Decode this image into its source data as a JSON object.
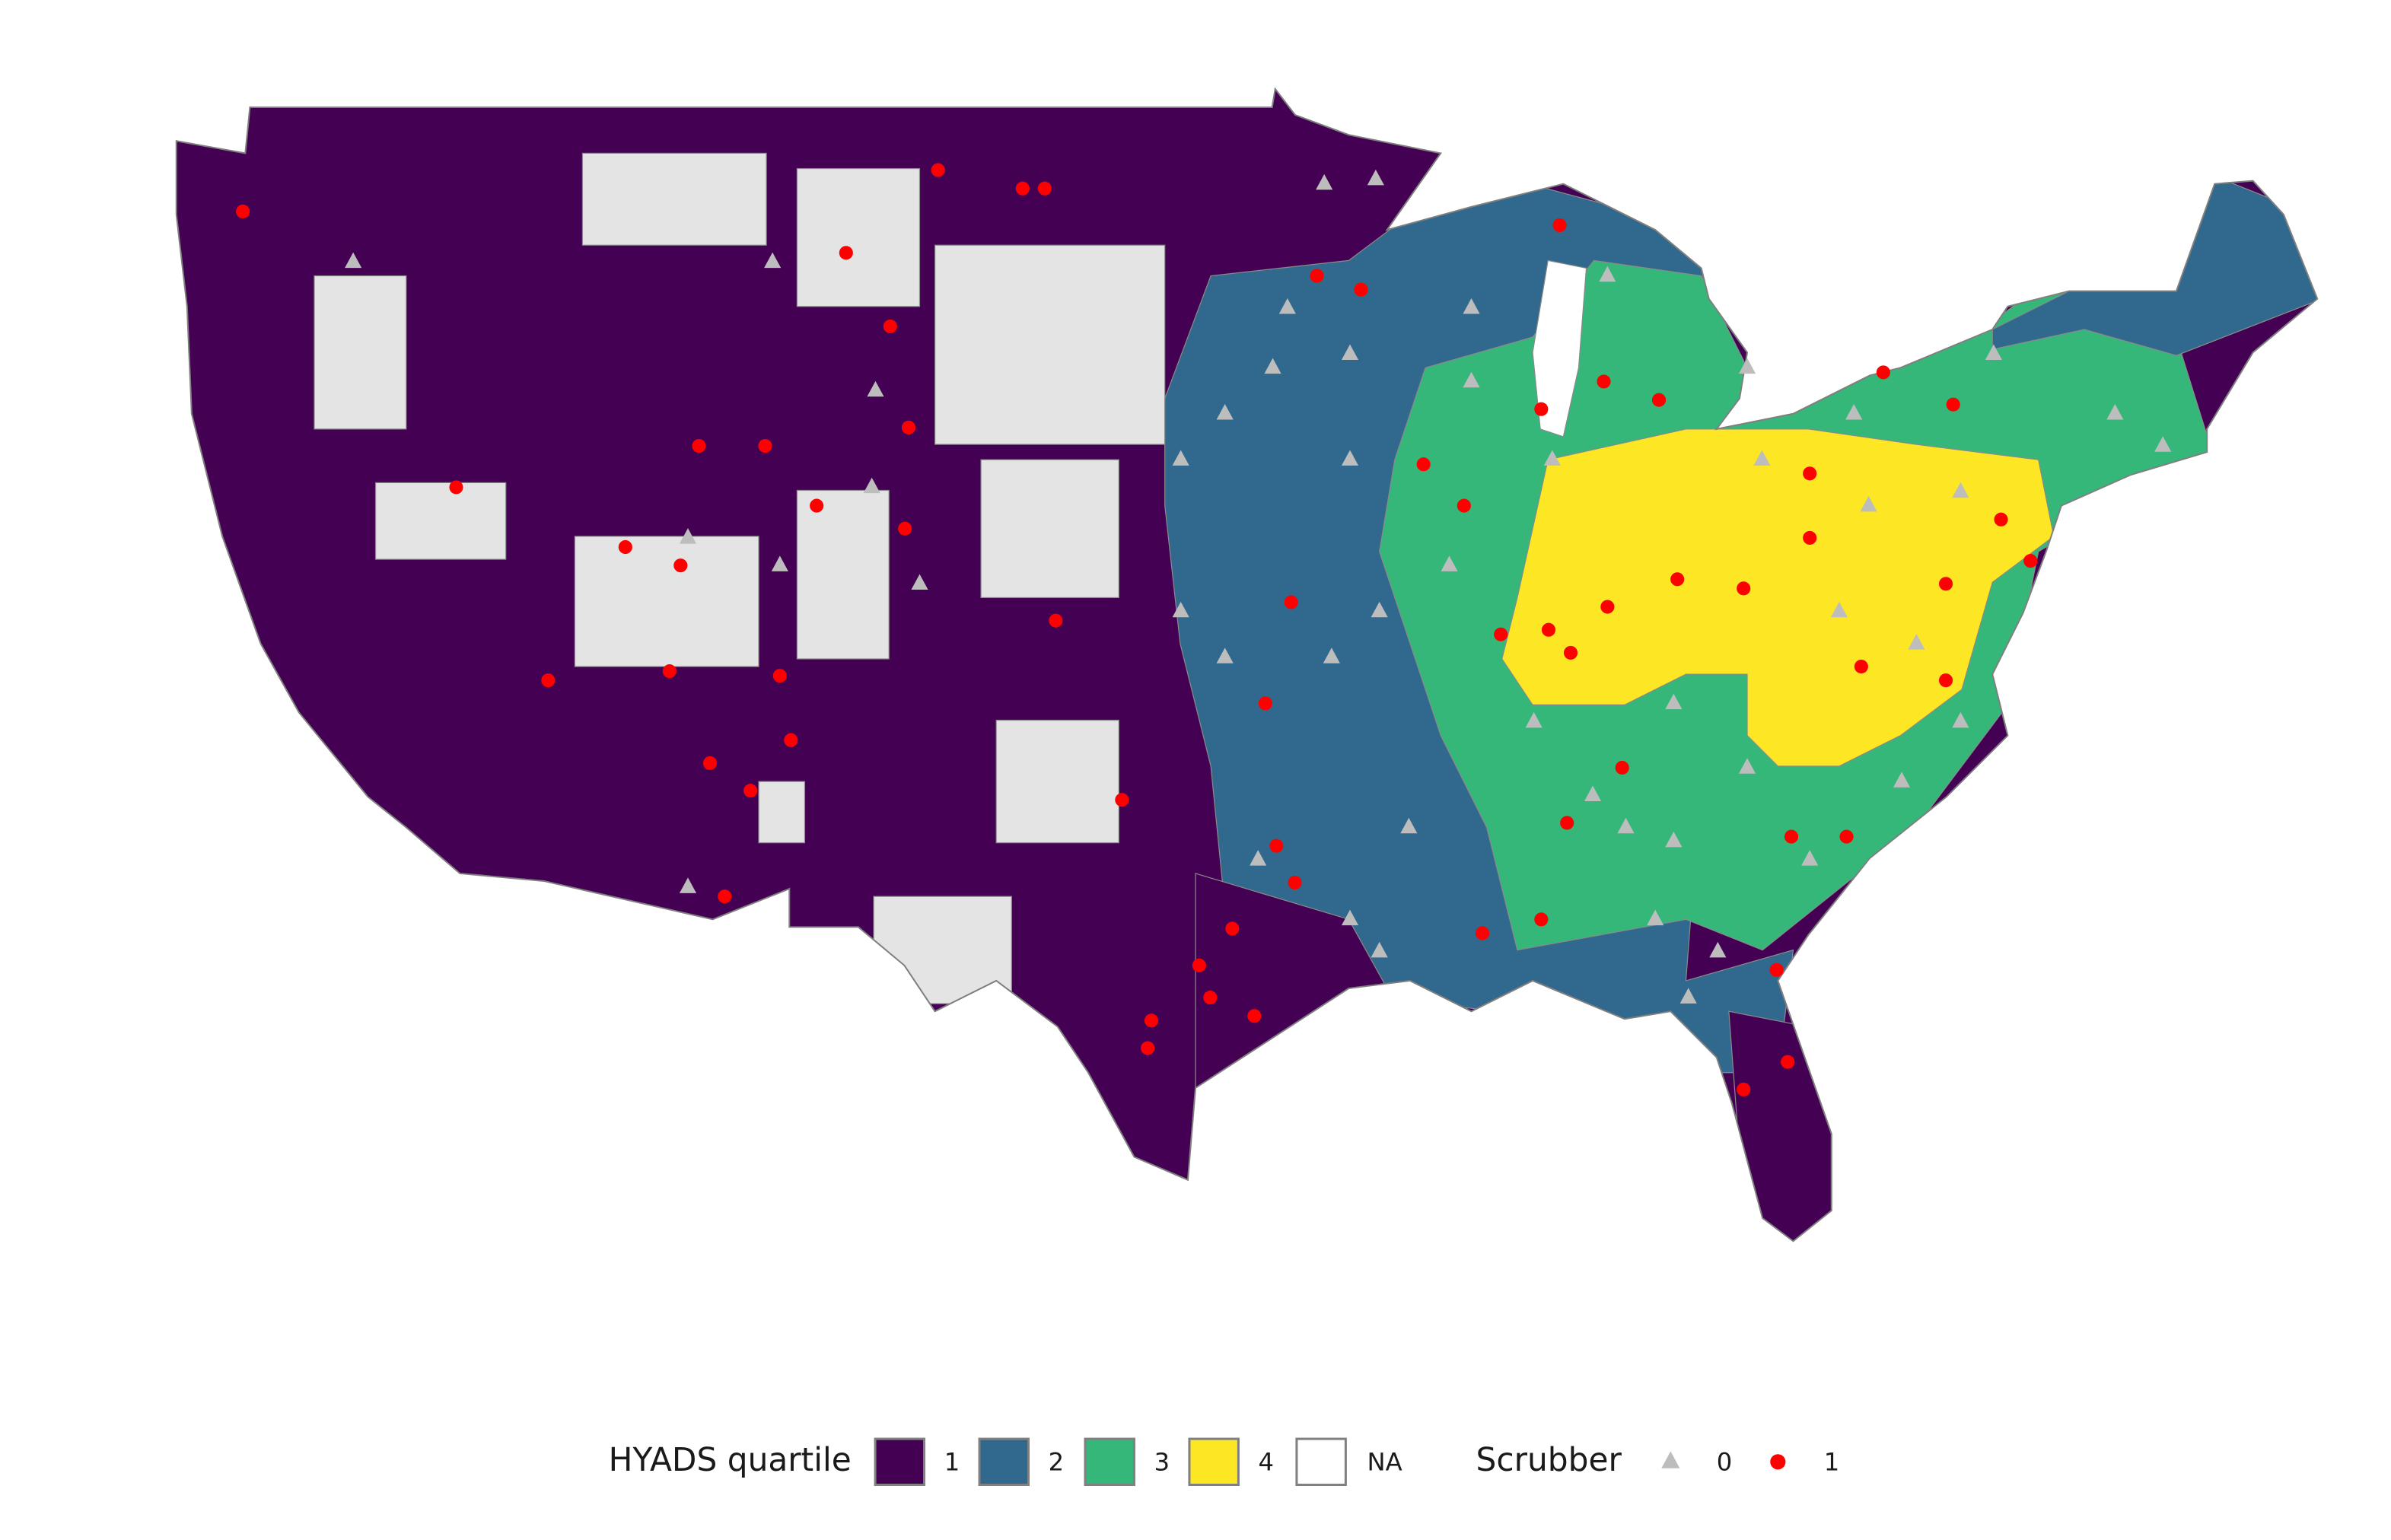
{
  "legend": {
    "fill_title": "HYADS quartile",
    "fill": [
      {
        "label": "1",
        "color": "#440154"
      },
      {
        "label": "2",
        "color": "#31688e"
      },
      {
        "label": "3",
        "color": "#35b779"
      },
      {
        "label": "4",
        "color": "#fde725"
      },
      {
        "label": "NA",
        "color": "#ffffff"
      }
    ],
    "shape_title": "Scrubber",
    "shape": [
      {
        "label": "0",
        "color": "#bdbdbd",
        "shape": "triangle"
      },
      {
        "label": "1",
        "color": "#ff0000",
        "shape": "circle"
      }
    ]
  },
  "plants": [
    [
      [
        -119.9,
        45.8
      ],
      [
        -108.5,
        45.8
      ],
      [
        -105.7,
        43.0
      ],
      [
        -105.8,
        40.9
      ],
      [
        -110.8,
        39.8
      ],
      [
        -108.3,
        39.2
      ],
      [
        -104.5,
        38.8
      ],
      [
        -110.8,
        32.2
      ],
      [
        -93.5,
        47.5
      ],
      [
        -92.1,
        47.6
      ],
      [
        -94.5,
        44.8
      ],
      [
        -92.8,
        43.8
      ],
      [
        -89.5,
        44.8
      ],
      [
        -85.8,
        45.5
      ],
      [
        -82.0,
        43.5
      ],
      [
        -79.1,
        42.5
      ],
      [
        -75.3,
        43.8
      ],
      [
        -72.0,
        42.5
      ],
      [
        -70.7,
        41.8
      ],
      [
        -97.4,
        41.5
      ],
      [
        -96.2,
        42.5
      ],
      [
        -94.9,
        43.5
      ],
      [
        -92.8,
        41.5
      ],
      [
        -89.5,
        43.2
      ],
      [
        -90.1,
        39.2
      ],
      [
        -92.0,
        38.2
      ],
      [
        -87.3,
        41.5
      ],
      [
        -81.6,
        41.5
      ],
      [
        -78.7,
        40.5
      ],
      [
        -76.2,
        40.8
      ],
      [
        -79.5,
        38.2
      ],
      [
        -84.0,
        36.2
      ],
      [
        -82.0,
        34.8
      ],
      [
        -85.3,
        33.5
      ],
      [
        -84.0,
        33.2
      ],
      [
        -87.8,
        35.8
      ],
      [
        -91.2,
        33.5
      ],
      [
        -92.8,
        31.5
      ],
      [
        -92.0,
        30.8
      ],
      [
        -84.5,
        31.5
      ],
      [
        -80.3,
        32.8
      ],
      [
        -77.8,
        34.5
      ],
      [
        -76.2,
        35.8
      ],
      [
        -77.4,
        37.5
      ],
      [
        -95.3,
        32.8
      ],
      [
        -86.2,
        34.2
      ],
      [
        -82.8,
        30.8
      ],
      [
        -83.6,
        29.8
      ],
      [
        -97.4,
        38.2
      ],
      [
        -96.2,
        37.2
      ],
      [
        -93.3,
        37.2
      ]
    ],
    [
      [
        -122.9,
        46.9
      ],
      [
        -117.1,
        40.9
      ],
      [
        -112.5,
        39.6
      ],
      [
        -111.0,
        39.2
      ],
      [
        -110.5,
        41.8
      ],
      [
        -108.7,
        41.8
      ],
      [
        -107.3,
        40.5
      ],
      [
        -105.3,
        44.4
      ],
      [
        -104.8,
        42.2
      ],
      [
        -104.9,
        40.0
      ],
      [
        -104.0,
        47.8
      ],
      [
        -101.7,
        47.4
      ],
      [
        -101.1,
        47.4
      ],
      [
        -106.5,
        46.0
      ],
      [
        -111.3,
        36.9
      ],
      [
        -114.6,
        36.7
      ],
      [
        -108.3,
        36.8
      ],
      [
        -108.0,
        35.4
      ],
      [
        -110.2,
        34.9
      ],
      [
        -109.1,
        34.3
      ],
      [
        -109.8,
        32.0
      ],
      [
        -100.8,
        38.0
      ],
      [
        -99.0,
        34.1
      ],
      [
        -93.7,
        45.5
      ],
      [
        -92.5,
        45.2
      ],
      [
        -87.1,
        46.6
      ],
      [
        -87.6,
        42.6
      ],
      [
        -90.8,
        41.4
      ],
      [
        -89.7,
        40.5
      ],
      [
        -85.9,
        43.2
      ],
      [
        -84.4,
        42.8
      ],
      [
        -78.3,
        43.4
      ],
      [
        -76.4,
        42.7
      ],
      [
        -80.3,
        41.2
      ],
      [
        -75.1,
        40.2
      ],
      [
        -74.3,
        39.3
      ],
      [
        -80.3,
        39.8
      ],
      [
        -83.9,
        38.9
      ],
      [
        -82.1,
        38.7
      ],
      [
        -85.8,
        38.3
      ],
      [
        -87.4,
        37.8
      ],
      [
        -86.8,
        37.3
      ],
      [
        -88.7,
        37.7
      ],
      [
        -76.6,
        38.8
      ],
      [
        -78.9,
        37.0
      ],
      [
        -76.6,
        36.7
      ],
      [
        -80.8,
        33.3
      ],
      [
        -79.3,
        33.3
      ],
      [
        -81.2,
        30.4
      ],
      [
        -80.9,
        28.4
      ],
      [
        -82.1,
        27.8
      ],
      [
        -89.2,
        31.2
      ],
      [
        -87.6,
        31.5
      ],
      [
        -85.4,
        34.8
      ],
      [
        -94.8,
        33.1
      ],
      [
        -94.3,
        32.3
      ],
      [
        -96.0,
        31.3
      ],
      [
        -96.9,
        30.5
      ],
      [
        -96.6,
        29.8
      ],
      [
        -95.4,
        29.4
      ],
      [
        -98.2,
        29.3
      ],
      [
        -98.3,
        28.7
      ],
      [
        -95.1,
        36.2
      ],
      [
        -94.4,
        38.4
      ],
      [
        -86.9,
        33.6
      ]
    ]
  ]
}
